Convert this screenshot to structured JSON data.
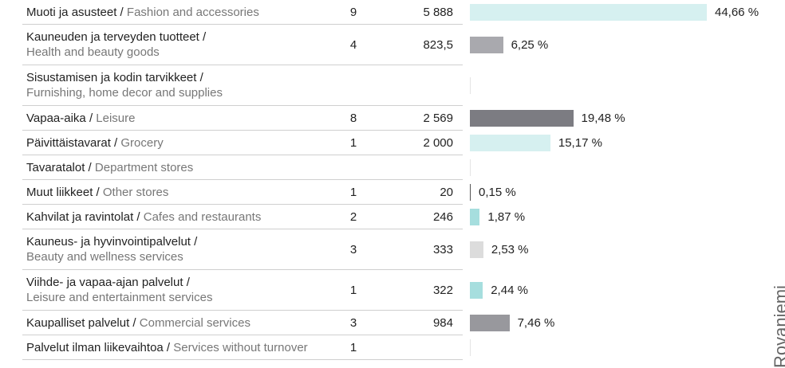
{
  "side_label": "Rovaniemi",
  "rows": [
    {
      "fi": "Muoti ja asusteet /",
      "en": "Fashion and accessories",
      "count": 9,
      "area": "5 888",
      "share": 44.66,
      "share_label": "44,66 %",
      "color": "#d6f0f0"
    },
    {
      "fi": "Kauneuden ja terveyden tuotteet /",
      "en": "Health and beauty goods",
      "count": 4,
      "area": "823,5",
      "share": 6.25,
      "share_label": "6,25 %",
      "color": "#a9a9ae"
    },
    {
      "fi": "Sisustamisen ja kodin tarvikkeet /",
      "en": "Furnishing, home decor and supplies"
    },
    {
      "fi": "Vapaa-aika /",
      "en": "Leisure",
      "count": 8,
      "area": "2 569",
      "share": 19.48,
      "share_label": "19,48 %",
      "color": "#7c7c82"
    },
    {
      "fi": "Päivittäistavarat /",
      "en": "Grocery",
      "count": 1,
      "area": "2 000",
      "share": 15.17,
      "share_label": "15,17 %",
      "color": "#d6f0f0"
    },
    {
      "fi": "Tavaratalot /",
      "en": "Department stores"
    },
    {
      "fi": "Muut liikkeet /",
      "en": "Other stores",
      "count": 1,
      "area": "20",
      "share": 0.15,
      "share_label": "0,15 %",
      "color": "#555555"
    },
    {
      "fi": "Kahvilat ja ravintolat /",
      "en": "Cafes and restaurants",
      "count": 2,
      "area": "246",
      "share": 1.87,
      "share_label": "1,87 %",
      "color": "#a6dede"
    },
    {
      "fi": "Kauneus- ja hyvinvointipalvelut /",
      "en": "Beauty and wellness services",
      "count": 3,
      "area": "333",
      "share": 2.53,
      "share_label": "2,53 %",
      "color": "#dcdcdc"
    },
    {
      "fi": "Viihde- ja vapaa-ajan palvelut /",
      "en": "Leisure and entertainment services",
      "count": 1,
      "area": "322",
      "share": 2.44,
      "share_label": "2,44 %",
      "color": "#a6dede"
    },
    {
      "fi": "Kaupalliset palvelut /",
      "en": "Commercial services",
      "count": 3,
      "area": "984",
      "share": 7.46,
      "share_label": "7,46 %",
      "color": "#98989d"
    },
    {
      "fi": "Palvelut ilman liikevaihtoa /",
      "en": "Services without turnover",
      "count": 1
    }
  ]
}
